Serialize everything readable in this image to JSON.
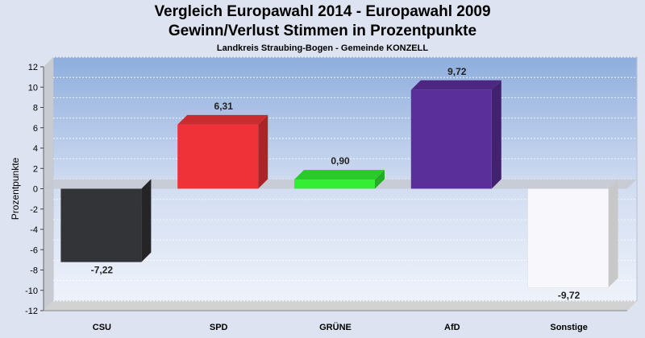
{
  "header": {
    "title_line1": "Vergleich Europawahl 2014 - Europawahl 2009",
    "title_line2": "Gewinn/Verlust Stimmen in Prozentpunkte",
    "subtitle": "Landkreis Straubing-Bogen - Gemeinde KONZELL"
  },
  "chart_data": {
    "type": "bar",
    "title": "Vergleich Europawahl 2014 - Europawahl 2009",
    "subtitle": "Gewinn/Verlust Stimmen in Prozentpunkte",
    "caption": "Landkreis Straubing-Bogen - Gemeinde KONZELL",
    "xlabel": "",
    "ylabel": "Prozentpunkte",
    "categories": [
      "CSU",
      "SPD",
      "GRÜNE",
      "AfD",
      "Sonstige"
    ],
    "values": [
      -7.22,
      6.31,
      0.9,
      9.72,
      -9.72
    ],
    "value_labels": [
      "-7,22",
      "6,31",
      "0,90",
      "9,72",
      "-9,72"
    ],
    "colors": [
      "#333438",
      "#ee3237",
      "#33ee33",
      "#5b2f9a",
      "#f8f8fc"
    ],
    "yticks": [
      12,
      10,
      8,
      6,
      4,
      2,
      0,
      -2,
      -4,
      -6,
      -8,
      -10,
      -12
    ],
    "ylim": [
      -12,
      12
    ],
    "grid": true,
    "legend": "none"
  }
}
